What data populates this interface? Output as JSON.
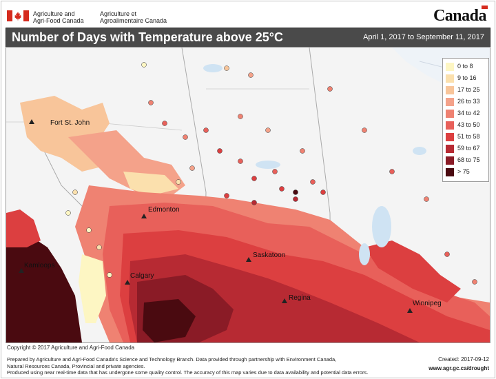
{
  "header": {
    "dept_en_line1": "Agriculture and",
    "dept_en_line2": "Agri-Food Canada",
    "dept_fr_line1": "Agriculture et",
    "dept_fr_line2": "Agroalimentaire Canada",
    "wordmark": "Canada"
  },
  "title": "Number of Days with Temperature above 25°C",
  "period": "April 1, 2017 to September 11, 2017",
  "legend": [
    {
      "label": "0 to 8",
      "color": "#fdf6c3"
    },
    {
      "label": "9 to 16",
      "color": "#fbe0ad"
    },
    {
      "label": "17 to 25",
      "color": "#f8c59a"
    },
    {
      "label": "26 to 33",
      "color": "#f4a28a"
    },
    {
      "label": "34 to 42",
      "color": "#ef8272"
    },
    {
      "label": "43 to 50",
      "color": "#e8605a"
    },
    {
      "label": "51 to 58",
      "color": "#dc3f40"
    },
    {
      "label": "59 to 67",
      "color": "#b72a33"
    },
    {
      "label": "68 to 75",
      "color": "#8a1b26"
    },
    {
      "label": "> 75",
      "color": "#4a0a10"
    }
  ],
  "cities": {
    "fort_st_john": "Fort St. John",
    "edmonton": "Edmonton",
    "kamloops": "Kamloops",
    "calgary": "Calgary",
    "saskatoon": "Saskatoon",
    "regina": "Regina",
    "winnipeg": "Winnipeg"
  },
  "footer": {
    "copyright": "Copyright © 2017 Agriculture and Agri-Food Canada",
    "line1": "Prepared by Agriculture and Agri-Food Canada's Science and Technology Branch. Data provided through partnership with Environment Canada,",
    "line2": "Natural Resources Canada, Provincial and private agencies.",
    "line3": "Produced using near real-time data that has undergone some quality control. The accuracy of this map varies due to data availability and potential data errors.",
    "created": "Created: 2017-09-12",
    "url": "www.agr.gc.ca/drought"
  }
}
